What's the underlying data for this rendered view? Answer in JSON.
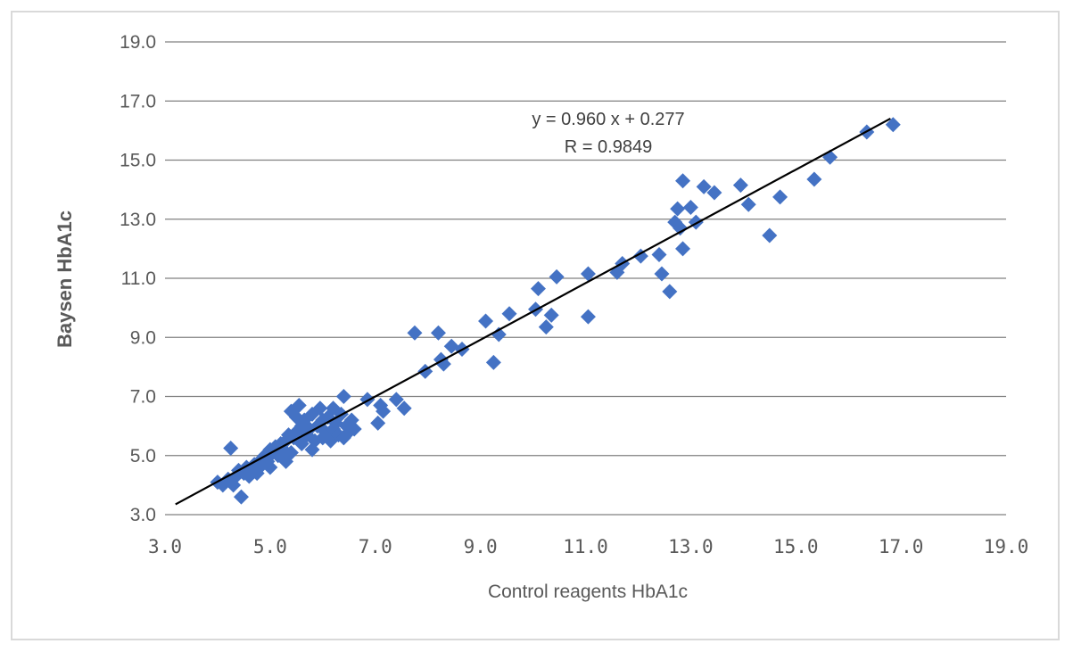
{
  "chart_data": {
    "type": "scatter",
    "title": "",
    "xlabel": "Control reagents  HbA1c",
    "ylabel": "Baysen  HbA1c",
    "xlim": [
      3.0,
      19.0
    ],
    "ylim": [
      3.0,
      19.0
    ],
    "xticks": [
      "3.0",
      "5.0",
      "7.0",
      "9.0",
      "11.0",
      "13.0",
      "15.0",
      "17.0",
      "19.0"
    ],
    "yticks": [
      "3.0",
      "5.0",
      "7.0",
      "9.0",
      "11.0",
      "13.0",
      "15.0",
      "17.0",
      "19.0"
    ],
    "grid": "horizontal",
    "colors": {
      "marker": "#4472C4",
      "trendline": "#000000",
      "grid": "#808080",
      "text": "#595959"
    },
    "annotation": {
      "equation": "y = 0.960 x + 0.277",
      "r": "R = 0.9849"
    },
    "trendline": {
      "slope": 0.96,
      "intercept": 0.277,
      "x_range": [
        3.2,
        16.8
      ]
    },
    "series": [
      {
        "marker": "diamond",
        "points": [
          [
            4.0,
            4.1
          ],
          [
            4.1,
            4.0
          ],
          [
            4.2,
            4.2
          ],
          [
            4.25,
            5.25
          ],
          [
            4.3,
            4.0
          ],
          [
            4.35,
            4.3
          ],
          [
            4.4,
            4.5
          ],
          [
            4.45,
            3.6
          ],
          [
            4.5,
            4.4
          ],
          [
            4.55,
            4.6
          ],
          [
            4.6,
            4.3
          ],
          [
            4.65,
            4.5
          ],
          [
            4.7,
            4.7
          ],
          [
            4.75,
            4.4
          ],
          [
            4.8,
            4.6
          ],
          [
            4.85,
            4.9
          ],
          [
            4.9,
            5.0
          ],
          [
            4.95,
            4.8
          ],
          [
            5.0,
            4.6
          ],
          [
            5.0,
            5.2
          ],
          [
            5.05,
            5.1
          ],
          [
            5.1,
            5.3
          ],
          [
            5.15,
            5.0
          ],
          [
            5.2,
            5.4
          ],
          [
            5.25,
            5.2
          ],
          [
            5.3,
            4.8
          ],
          [
            5.3,
            5.5
          ],
          [
            5.35,
            5.7
          ],
          [
            5.4,
            5.1
          ],
          [
            5.4,
            6.5
          ],
          [
            5.45,
            5.6
          ],
          [
            5.5,
            5.8
          ],
          [
            5.5,
            6.3
          ],
          [
            5.55,
            6.7
          ],
          [
            5.6,
            5.4
          ],
          [
            5.6,
            6.0
          ],
          [
            5.65,
            6.2
          ],
          [
            5.7,
            5.7
          ],
          [
            5.75,
            5.9
          ],
          [
            5.8,
            6.4
          ],
          [
            5.8,
            5.2
          ],
          [
            5.85,
            5.5
          ],
          [
            5.9,
            6.0
          ],
          [
            5.95,
            6.6
          ],
          [
            6.0,
            5.6
          ],
          [
            6.0,
            6.2
          ],
          [
            6.05,
            5.8
          ],
          [
            6.1,
            6.3
          ],
          [
            6.15,
            5.5
          ],
          [
            6.2,
            6.6
          ],
          [
            6.2,
            5.9
          ],
          [
            6.25,
            6.1
          ],
          [
            6.3,
            5.7
          ],
          [
            6.35,
            6.4
          ],
          [
            6.4,
            7.0
          ],
          [
            6.4,
            5.6
          ],
          [
            6.45,
            6.0
          ],
          [
            6.5,
            5.8
          ],
          [
            6.55,
            6.2
          ],
          [
            6.6,
            5.9
          ],
          [
            6.85,
            6.9
          ],
          [
            7.05,
            6.1
          ],
          [
            7.1,
            6.7
          ],
          [
            7.15,
            6.5
          ],
          [
            7.4,
            6.9
          ],
          [
            7.55,
            6.6
          ],
          [
            7.75,
            9.15
          ],
          [
            7.95,
            7.85
          ],
          [
            8.2,
            9.15
          ],
          [
            8.25,
            8.25
          ],
          [
            8.3,
            8.1
          ],
          [
            8.45,
            8.7
          ],
          [
            8.65,
            8.6
          ],
          [
            9.1,
            9.55
          ],
          [
            9.25,
            8.15
          ],
          [
            9.35,
            9.1
          ],
          [
            9.55,
            9.8
          ],
          [
            10.05,
            9.95
          ],
          [
            10.1,
            10.65
          ],
          [
            10.25,
            9.35
          ],
          [
            10.35,
            9.75
          ],
          [
            10.45,
            11.05
          ],
          [
            11.05,
            11.15
          ],
          [
            11.05,
            9.7
          ],
          [
            11.6,
            11.2
          ],
          [
            11.7,
            11.5
          ],
          [
            12.05,
            11.75
          ],
          [
            12.4,
            11.8
          ],
          [
            12.45,
            11.15
          ],
          [
            12.6,
            10.55
          ],
          [
            12.7,
            12.9
          ],
          [
            12.75,
            13.35
          ],
          [
            12.8,
            12.7
          ],
          [
            12.85,
            14.3
          ],
          [
            12.85,
            12.0
          ],
          [
            13.0,
            13.4
          ],
          [
            13.1,
            12.9
          ],
          [
            13.25,
            14.1
          ],
          [
            13.45,
            13.9
          ],
          [
            13.95,
            14.15
          ],
          [
            14.1,
            13.5
          ],
          [
            14.5,
            12.45
          ],
          [
            14.7,
            13.75
          ],
          [
            15.35,
            14.35
          ],
          [
            15.65,
            15.1
          ],
          [
            16.35,
            15.95
          ],
          [
            16.85,
            16.2
          ]
        ]
      }
    ]
  }
}
